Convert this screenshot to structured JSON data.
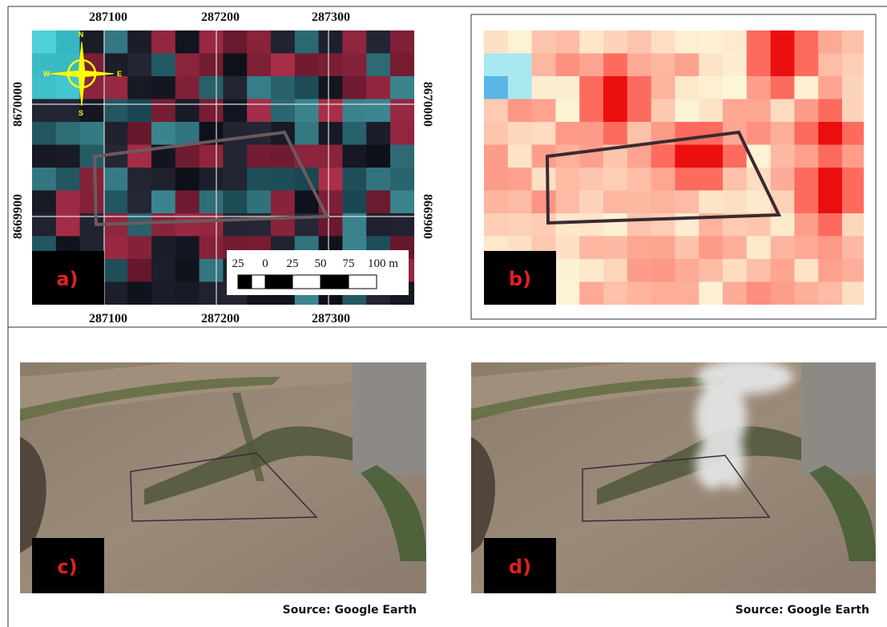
{
  "panels": [
    {
      "label": "a)",
      "top_ticks": [
        "287100",
        "287200",
        "287300"
      ],
      "bottom_ticks": [
        "287100",
        "287200",
        "287300"
      ],
      "left_ticks": [
        "8670000",
        "8669900"
      ],
      "right_ticks": [
        "8670000",
        "8669900"
      ],
      "compass": {
        "n": "N",
        "e": "E",
        "s": "S",
        "w": "W"
      },
      "scale_bar": [
        "25",
        "0",
        "25",
        "50",
        "75",
        "100 m"
      ]
    },
    {
      "label": "b)"
    },
    {
      "label": "c)",
      "source": "Source: Google Earth"
    },
    {
      "label": "d)",
      "source": "Source: Google Earth"
    }
  ]
}
